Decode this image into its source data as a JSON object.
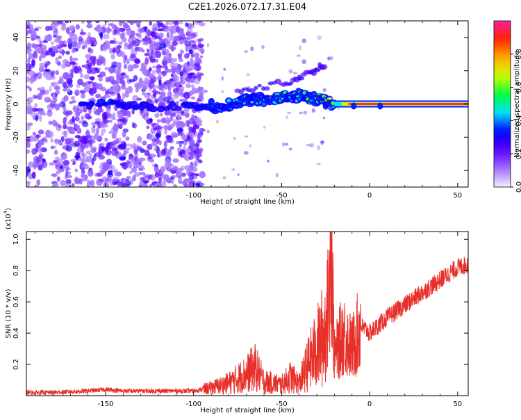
{
  "page_title": "C2E1.2026.072.17.31.E04",
  "chart_data": [
    {
      "type": "heatmap",
      "title": "C2E1.2026.072.17.31.E04",
      "xlabel": "Height of straight line (km)",
      "ylabel": "Frequency (Hz)",
      "xlim": [
        -195,
        56
      ],
      "ylim": [
        -50,
        50
      ],
      "xticks": [
        -150,
        -100,
        -50,
        0,
        50
      ],
      "xtick_labels": [
        "-150",
        "-100",
        "-50",
        "0",
        "50"
      ],
      "yticks": [
        -40,
        -20,
        0,
        20,
        40
      ],
      "ytick_labels": [
        "-40",
        "-20",
        "0",
        "20",
        "40"
      ],
      "colorbar": {
        "label": "Normalized spectral amplitude",
        "range": [
          0,
          1
        ],
        "ticks": [
          0.0,
          0.2,
          0.4,
          0.6,
          0.8
        ],
        "tick_labels": [
          "0.0",
          "0.2",
          "0.4",
          "0.6",
          "0.8"
        ],
        "colors": [
          "#f4f0ff",
          "#a070ff",
          "#5a00ff",
          "#0000ff",
          "#00e0ff",
          "#00ff40",
          "#d0ff00",
          "#ffb000",
          "#ff2000",
          "#ff20a0"
        ]
      },
      "noise_region": {
        "x_range": [
          -195,
          -95
        ],
        "frequency_range": [
          -50,
          50
        ],
        "level": 0.15
      },
      "ridge": [
        {
          "x": -165,
          "freq": 0,
          "amp": 0.35
        },
        {
          "x": -145,
          "freq": 0,
          "amp": 0.4
        },
        {
          "x": -125,
          "freq": -2,
          "amp": 0.3
        },
        {
          "x": -100,
          "freq": -1,
          "amp": 0.3
        },
        {
          "x": -85,
          "freq": -1,
          "amp": 0.45
        },
        {
          "x": -70,
          "freq": 2,
          "amp": 0.55
        },
        {
          "x": -55,
          "freq": 3,
          "amp": 0.6
        },
        {
          "x": -40,
          "freq": 5,
          "amp": 0.55
        },
        {
          "x": -28,
          "freq": 3,
          "amp": 0.6
        },
        {
          "x": -20,
          "freq": -1,
          "amp": 0.7
        },
        {
          "x": -10,
          "freq": 0,
          "amp": 0.85
        },
        {
          "x": 0,
          "freq": 0,
          "amp": 0.95
        },
        {
          "x": 56,
          "freq": 0,
          "amp": 1.0
        }
      ],
      "upper_branch": [
        {
          "x": -75,
          "freq": 8
        },
        {
          "x": -50,
          "freq": 12
        },
        {
          "x": -35,
          "freq": 18
        },
        {
          "x": -25,
          "freq": 24
        }
      ]
    },
    {
      "type": "line",
      "title": "",
      "xlabel": "Height of straight line (km)",
      "ylabel": "SNR (10 * v/v)",
      "y_multiplier_label": "(x10",
      "y_multiplier_exp": "4",
      "y_multiplier_close": ")",
      "xlim": [
        -195,
        56
      ],
      "ylim": [
        0,
        1.05
      ],
      "xticks": [
        -150,
        -100,
        -50,
        0,
        50
      ],
      "xtick_labels": [
        "-150",
        "-100",
        "-50",
        "0",
        "50"
      ],
      "yticks": [
        0.2,
        0.4,
        0.6,
        0.8,
        1.0
      ],
      "ytick_labels": [
        "0.2",
        "0.4",
        "0.6",
        "0.8",
        "1.0"
      ],
      "series": [
        {
          "name": "SNR",
          "color": "#e8302a",
          "x": [
            -195,
            -180,
            -160,
            -150,
            -140,
            -120,
            -100,
            -90,
            -80,
            -70,
            -65,
            -60,
            -50,
            -45,
            -40,
            -35,
            -30,
            -25,
            -23,
            -22,
            -20,
            -15,
            -10,
            -5,
            0,
            10,
            20,
            30,
            40,
            50,
            56
          ],
          "y": [
            0.02,
            0.02,
            0.03,
            0.04,
            0.03,
            0.03,
            0.03,
            0.05,
            0.08,
            0.14,
            0.18,
            0.09,
            0.07,
            0.12,
            0.08,
            0.2,
            0.3,
            0.42,
            0.65,
            1.05,
            0.25,
            0.4,
            0.3,
            0.45,
            0.4,
            0.5,
            0.58,
            0.66,
            0.74,
            0.82,
            0.84
          ]
        }
      ]
    }
  ]
}
